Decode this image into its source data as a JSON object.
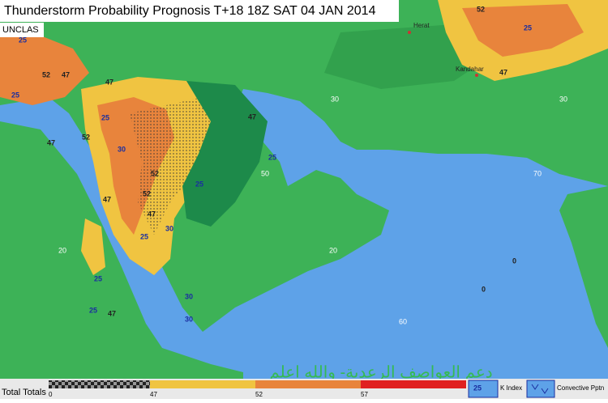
{
  "header": {
    "title": "Thunderstorm Probability Prognosis T+18 18Z SAT 04 JAN 2014",
    "classification": "UNCLAS"
  },
  "map": {
    "cities": [
      "Herat",
      "Kandahar"
    ],
    "grid_labels": [
      "30",
      "30",
      "20",
      "20",
      "50",
      "60",
      "70"
    ],
    "contour_labels": [
      "52",
      "25",
      "25",
      "52",
      "47",
      "25",
      "47",
      "25",
      "52",
      "30",
      "52",
      "47",
      "52",
      "25",
      "30",
      "25",
      "47",
      "25",
      "47",
      "25",
      "47",
      "25",
      "30",
      "30",
      "0",
      "0",
      "47",
      "47"
    ]
  },
  "legend": {
    "scale_title": "Total Totals",
    "scale_ticks": [
      "0",
      "47",
      "52",
      "57"
    ],
    "k_index_sample": "25",
    "k_index": "K Index",
    "convective": "Convective Pptn"
  },
  "watermark": "دعم العواصف الرعدية- والله اعلم"
}
